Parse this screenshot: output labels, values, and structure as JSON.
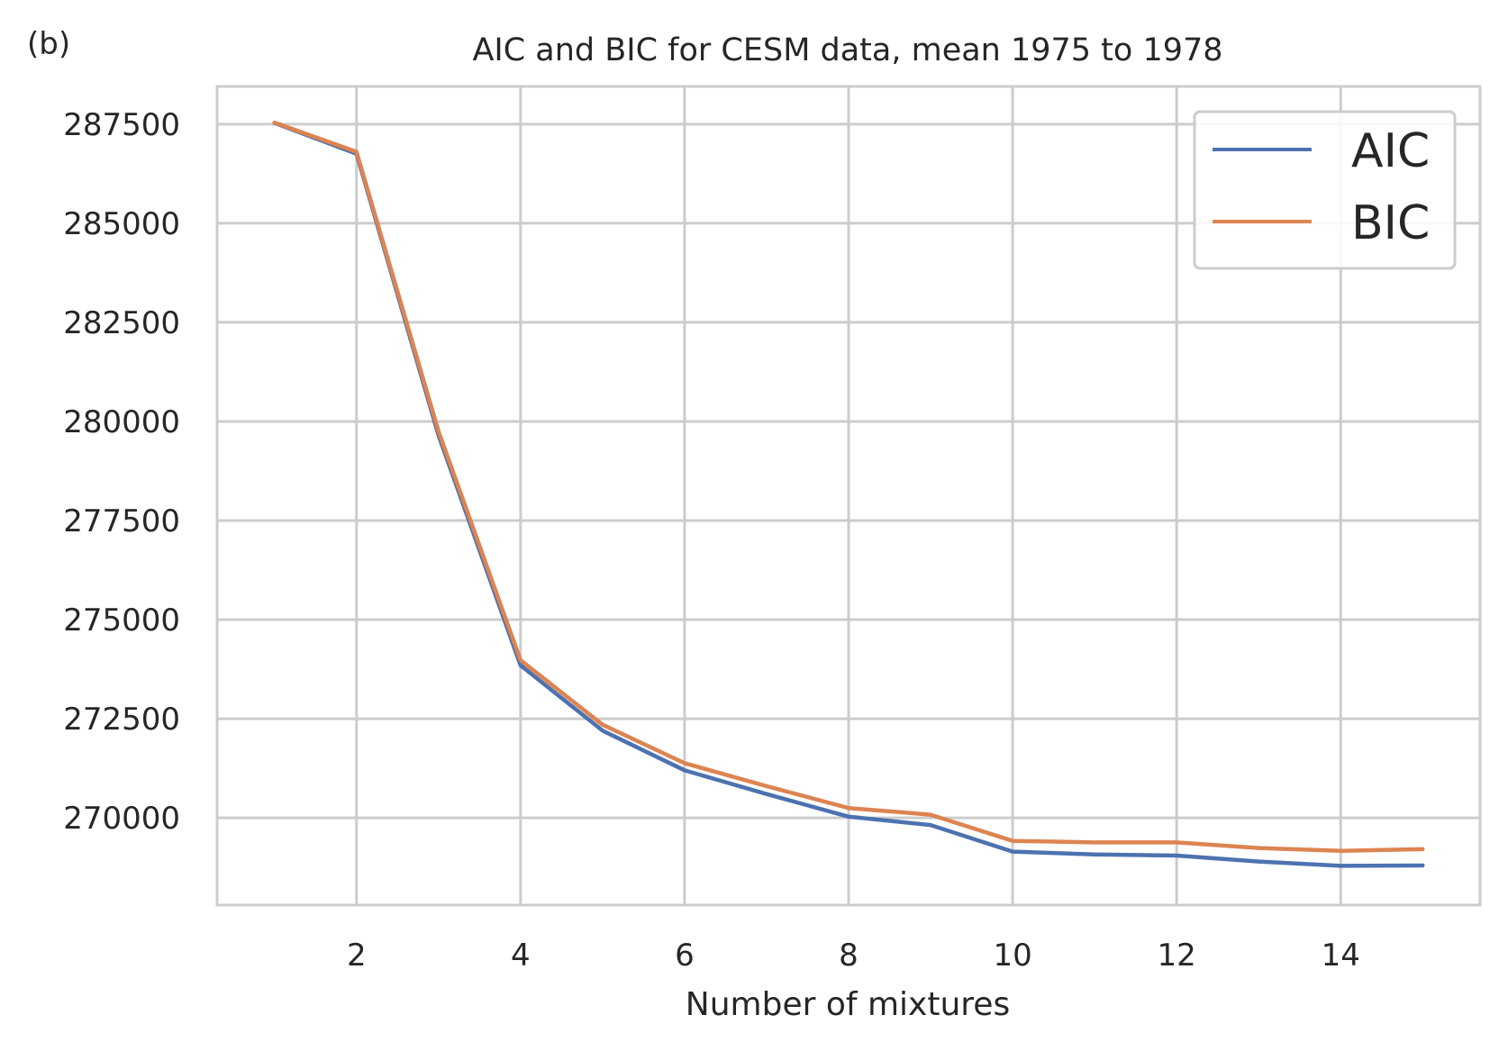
{
  "panel_label": "(b)",
  "chart_data": {
    "type": "line",
    "title": "AIC and BIC for CESM data, mean 1975 to 1978",
    "xlabel": "Number of mixtures",
    "ylabel": "",
    "x": [
      1,
      2,
      3,
      4,
      5,
      6,
      7,
      8,
      9,
      10,
      11,
      12,
      13,
      14,
      15
    ],
    "xticks": [
      2,
      4,
      6,
      8,
      10,
      12,
      14
    ],
    "yticks": [
      270000,
      272500,
      275000,
      277500,
      280000,
      282500,
      285000,
      287500
    ],
    "xlim": [
      0.3,
      15.7
    ],
    "ylim": [
      267800,
      288450
    ],
    "grid": true,
    "legend_position": "top-right",
    "series": [
      {
        "name": "AIC",
        "color": "#4c72b0",
        "values": [
          287530,
          286750,
          279650,
          273850,
          272200,
          271200,
          270600,
          270030,
          269820,
          269150,
          269080,
          269050,
          268900,
          268790,
          268800
        ]
      },
      {
        "name": "BIC",
        "color": "#dd8452",
        "values": [
          287540,
          286800,
          279750,
          273980,
          272350,
          271380,
          270800,
          270250,
          270080,
          269420,
          269380,
          269380,
          269240,
          269170,
          269210
        ]
      }
    ]
  }
}
